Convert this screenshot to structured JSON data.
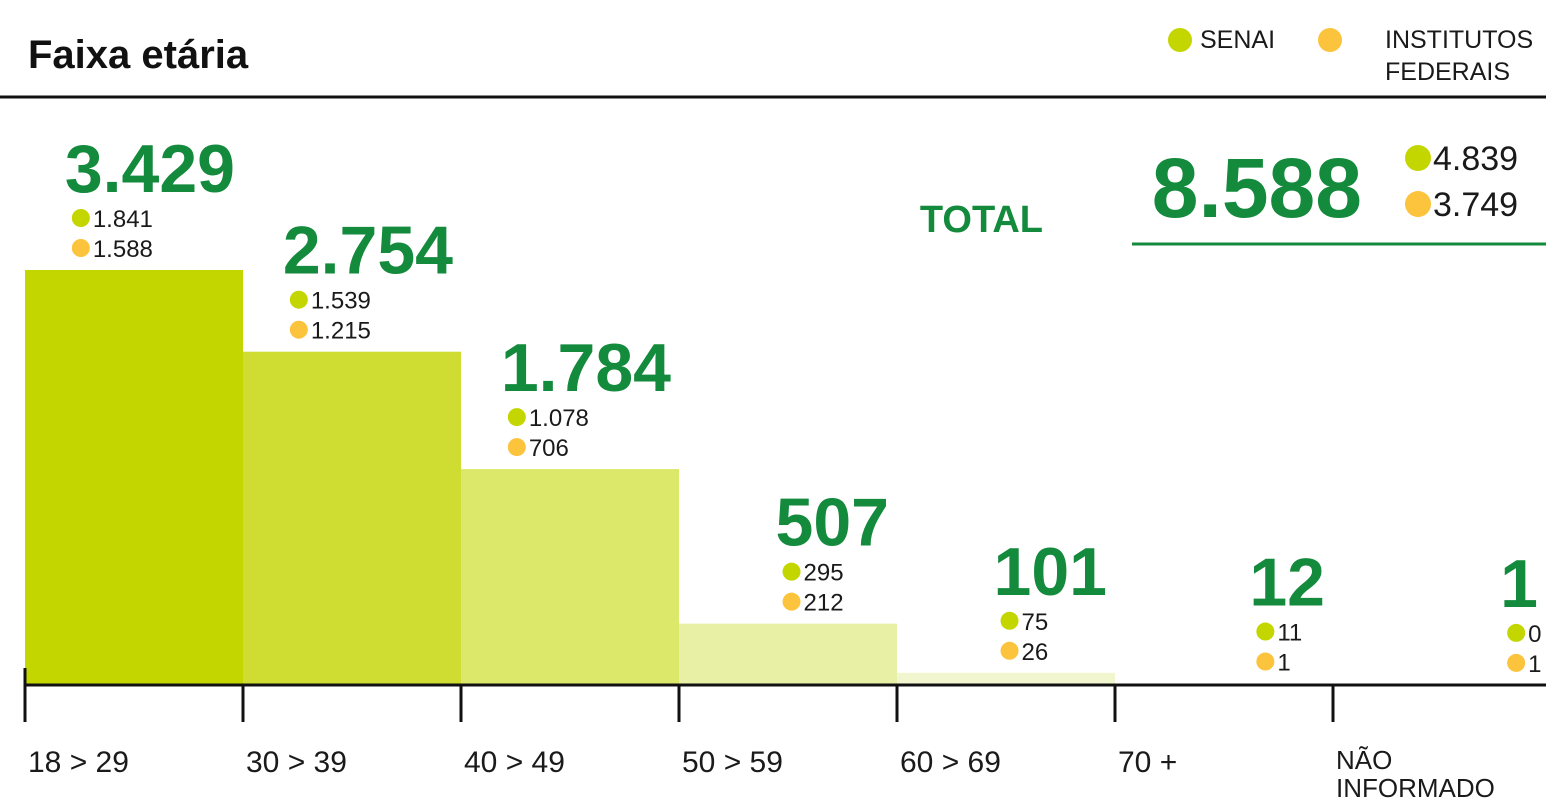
{
  "chart_data": {
    "type": "bar",
    "title": "Faixa etária",
    "categories": [
      "18 > 29",
      "30 > 39",
      "40 > 49",
      "50 > 59",
      "60 > 69",
      "70 +",
      "NÃO INFORMADO"
    ],
    "values": [
      3429,
      2754,
      1784,
      507,
      101,
      12,
      1
    ],
    "value_labels": [
      "3.429",
      "2.754",
      "1.784",
      "507",
      "101",
      "12",
      "1"
    ],
    "colors": [
      "#c4d600",
      "#cfdd33",
      "#dce86a",
      "#e8f0a6",
      "#f1f6cf",
      "#f7f9e6",
      "#fafbf0"
    ],
    "series": [
      {
        "name": "SENAI",
        "color": "#c4d600",
        "values": [
          1841,
          1539,
          1078,
          295,
          75,
          11,
          0
        ],
        "value_labels": [
          "1.841",
          "1.539",
          "1.078",
          "295",
          "75",
          "11",
          "0"
        ]
      },
      {
        "name": "INSTITUTOS FEDERAIS",
        "color": "#fcc33c",
        "values": [
          1588,
          1215,
          706,
          212,
          26,
          1,
          1
        ],
        "value_labels": [
          "1.588",
          "1.215",
          "706",
          "212",
          "26",
          "1",
          "1"
        ]
      }
    ],
    "total": {
      "label": "TOTAL",
      "value": 8588,
      "value_label": "8.588",
      "series_values": [
        4839,
        3749
      ],
      "series_value_labels": [
        "4.839",
        "3.749"
      ]
    }
  }
}
